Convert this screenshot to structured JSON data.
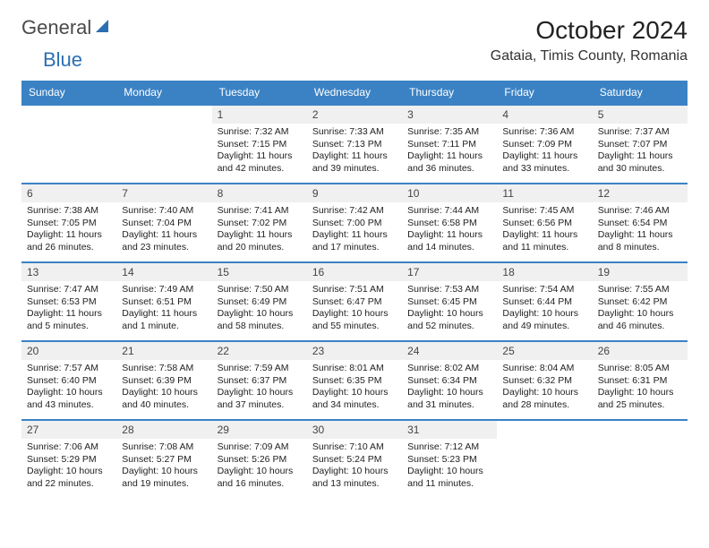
{
  "logo": {
    "general": "General",
    "blue": "Blue"
  },
  "header": {
    "title": "October 2024",
    "location": "Gataia, Timis County, Romania"
  },
  "colors": {
    "header_bg": "#3b82c4",
    "header_text": "#ffffff",
    "row_border": "#3b82c4",
    "daynum_bg": "#f0f0f0",
    "text": "#222222",
    "logo_gray": "#4a4a4a",
    "logo_blue": "#2b6fb3",
    "page_bg": "#ffffff"
  },
  "typography": {
    "title_fontsize_pt": 21,
    "location_fontsize_pt": 12,
    "dayheader_fontsize_pt": 9,
    "daynum_fontsize_pt": 9,
    "cell_fontsize_pt": 8
  },
  "calendar": {
    "day_names": [
      "Sunday",
      "Monday",
      "Tuesday",
      "Wednesday",
      "Thursday",
      "Friday",
      "Saturday"
    ],
    "weeks": [
      [
        {
          "num": "",
          "lines": []
        },
        {
          "num": "",
          "lines": []
        },
        {
          "num": "1",
          "lines": [
            "Sunrise: 7:32 AM",
            "Sunset: 7:15 PM",
            "Daylight: 11 hours and 42 minutes."
          ]
        },
        {
          "num": "2",
          "lines": [
            "Sunrise: 7:33 AM",
            "Sunset: 7:13 PM",
            "Daylight: 11 hours and 39 minutes."
          ]
        },
        {
          "num": "3",
          "lines": [
            "Sunrise: 7:35 AM",
            "Sunset: 7:11 PM",
            "Daylight: 11 hours and 36 minutes."
          ]
        },
        {
          "num": "4",
          "lines": [
            "Sunrise: 7:36 AM",
            "Sunset: 7:09 PM",
            "Daylight: 11 hours and 33 minutes."
          ]
        },
        {
          "num": "5",
          "lines": [
            "Sunrise: 7:37 AM",
            "Sunset: 7:07 PM",
            "Daylight: 11 hours and 30 minutes."
          ]
        }
      ],
      [
        {
          "num": "6",
          "lines": [
            "Sunrise: 7:38 AM",
            "Sunset: 7:05 PM",
            "Daylight: 11 hours and 26 minutes."
          ]
        },
        {
          "num": "7",
          "lines": [
            "Sunrise: 7:40 AM",
            "Sunset: 7:04 PM",
            "Daylight: 11 hours and 23 minutes."
          ]
        },
        {
          "num": "8",
          "lines": [
            "Sunrise: 7:41 AM",
            "Sunset: 7:02 PM",
            "Daylight: 11 hours and 20 minutes."
          ]
        },
        {
          "num": "9",
          "lines": [
            "Sunrise: 7:42 AM",
            "Sunset: 7:00 PM",
            "Daylight: 11 hours and 17 minutes."
          ]
        },
        {
          "num": "10",
          "lines": [
            "Sunrise: 7:44 AM",
            "Sunset: 6:58 PM",
            "Daylight: 11 hours and 14 minutes."
          ]
        },
        {
          "num": "11",
          "lines": [
            "Sunrise: 7:45 AM",
            "Sunset: 6:56 PM",
            "Daylight: 11 hours and 11 minutes."
          ]
        },
        {
          "num": "12",
          "lines": [
            "Sunrise: 7:46 AM",
            "Sunset: 6:54 PM",
            "Daylight: 11 hours and 8 minutes."
          ]
        }
      ],
      [
        {
          "num": "13",
          "lines": [
            "Sunrise: 7:47 AM",
            "Sunset: 6:53 PM",
            "Daylight: 11 hours and 5 minutes."
          ]
        },
        {
          "num": "14",
          "lines": [
            "Sunrise: 7:49 AM",
            "Sunset: 6:51 PM",
            "Daylight: 11 hours and 1 minute."
          ]
        },
        {
          "num": "15",
          "lines": [
            "Sunrise: 7:50 AM",
            "Sunset: 6:49 PM",
            "Daylight: 10 hours and 58 minutes."
          ]
        },
        {
          "num": "16",
          "lines": [
            "Sunrise: 7:51 AM",
            "Sunset: 6:47 PM",
            "Daylight: 10 hours and 55 minutes."
          ]
        },
        {
          "num": "17",
          "lines": [
            "Sunrise: 7:53 AM",
            "Sunset: 6:45 PM",
            "Daylight: 10 hours and 52 minutes."
          ]
        },
        {
          "num": "18",
          "lines": [
            "Sunrise: 7:54 AM",
            "Sunset: 6:44 PM",
            "Daylight: 10 hours and 49 minutes."
          ]
        },
        {
          "num": "19",
          "lines": [
            "Sunrise: 7:55 AM",
            "Sunset: 6:42 PM",
            "Daylight: 10 hours and 46 minutes."
          ]
        }
      ],
      [
        {
          "num": "20",
          "lines": [
            "Sunrise: 7:57 AM",
            "Sunset: 6:40 PM",
            "Daylight: 10 hours and 43 minutes."
          ]
        },
        {
          "num": "21",
          "lines": [
            "Sunrise: 7:58 AM",
            "Sunset: 6:39 PM",
            "Daylight: 10 hours and 40 minutes."
          ]
        },
        {
          "num": "22",
          "lines": [
            "Sunrise: 7:59 AM",
            "Sunset: 6:37 PM",
            "Daylight: 10 hours and 37 minutes."
          ]
        },
        {
          "num": "23",
          "lines": [
            "Sunrise: 8:01 AM",
            "Sunset: 6:35 PM",
            "Daylight: 10 hours and 34 minutes."
          ]
        },
        {
          "num": "24",
          "lines": [
            "Sunrise: 8:02 AM",
            "Sunset: 6:34 PM",
            "Daylight: 10 hours and 31 minutes."
          ]
        },
        {
          "num": "25",
          "lines": [
            "Sunrise: 8:04 AM",
            "Sunset: 6:32 PM",
            "Daylight: 10 hours and 28 minutes."
          ]
        },
        {
          "num": "26",
          "lines": [
            "Sunrise: 8:05 AM",
            "Sunset: 6:31 PM",
            "Daylight: 10 hours and 25 minutes."
          ]
        }
      ],
      [
        {
          "num": "27",
          "lines": [
            "Sunrise: 7:06 AM",
            "Sunset: 5:29 PM",
            "Daylight: 10 hours and 22 minutes."
          ]
        },
        {
          "num": "28",
          "lines": [
            "Sunrise: 7:08 AM",
            "Sunset: 5:27 PM",
            "Daylight: 10 hours and 19 minutes."
          ]
        },
        {
          "num": "29",
          "lines": [
            "Sunrise: 7:09 AM",
            "Sunset: 5:26 PM",
            "Daylight: 10 hours and 16 minutes."
          ]
        },
        {
          "num": "30",
          "lines": [
            "Sunrise: 7:10 AM",
            "Sunset: 5:24 PM",
            "Daylight: 10 hours and 13 minutes."
          ]
        },
        {
          "num": "31",
          "lines": [
            "Sunrise: 7:12 AM",
            "Sunset: 5:23 PM",
            "Daylight: 10 hours and 11 minutes."
          ]
        },
        {
          "num": "",
          "lines": []
        },
        {
          "num": "",
          "lines": []
        }
      ]
    ]
  }
}
